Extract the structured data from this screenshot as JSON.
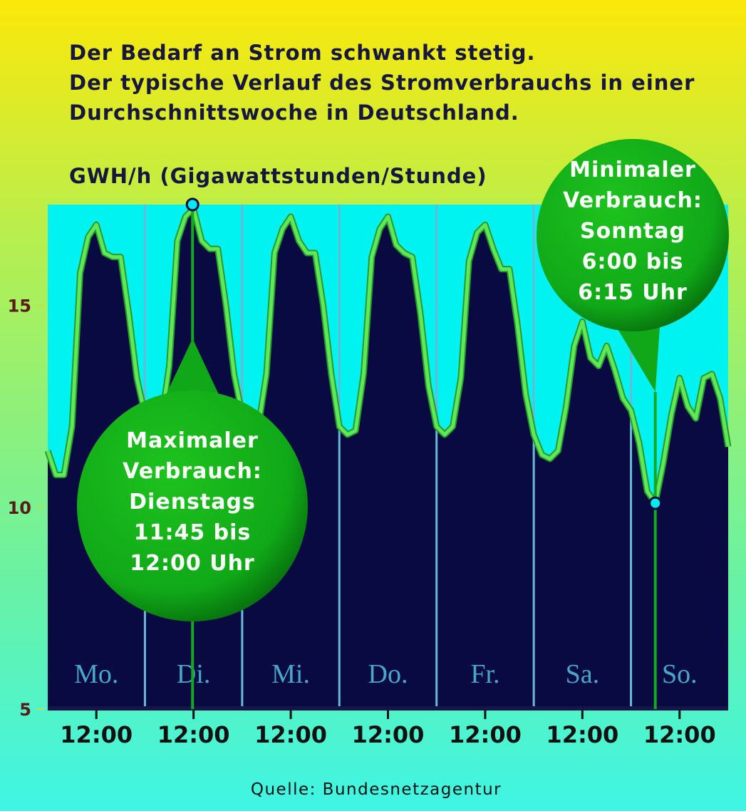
{
  "chart_data": {
    "type": "area",
    "title": [
      "Der Bedarf an Strom schwankt stetig.",
      "Der typische Verlauf des Stromverbrauchs in einer",
      "Durchschnittswoche in Deutschland."
    ],
    "y_label": "GWH/h (Gigawattstunden/Stunde)",
    "source": "Quelle: Bundesnetzagentur",
    "days": [
      "Mo.",
      "Di.",
      "Mi.",
      "Do.",
      "Fr.",
      "Sa.",
      "So."
    ],
    "x": [
      0,
      2,
      4,
      6,
      8,
      10,
      12,
      14,
      16,
      18,
      20,
      22,
      24,
      26,
      28,
      30,
      32,
      34,
      36,
      38,
      40,
      42,
      44,
      46,
      48,
      50,
      52,
      54,
      56,
      58,
      60,
      62,
      64,
      66,
      68,
      70,
      72,
      74,
      76,
      78,
      80,
      82,
      84,
      86,
      88,
      90,
      92,
      94,
      96,
      98,
      100,
      102,
      104,
      106,
      108,
      110,
      112,
      114,
      116,
      118,
      120,
      122,
      124,
      126,
      128,
      130,
      132,
      134,
      136,
      138,
      140,
      142,
      144,
      146,
      148,
      150,
      152,
      154,
      156,
      158,
      160,
      162,
      164,
      166,
      168
    ],
    "series": [
      {
        "name": "Stromverbrauch",
        "color": "#5fe85a",
        "fill": "#0a0a42",
        "values": [
          11.4,
          10.8,
          10.8,
          12.0,
          15.8,
          16.7,
          17.0,
          16.3,
          16.2,
          16.2,
          14.8,
          13.2,
          12.3,
          12.0,
          12.1,
          13.5,
          16.6,
          17.2,
          17.4,
          16.6,
          16.4,
          16.4,
          15.0,
          13.3,
          12.3,
          12.0,
          12.0,
          13.3,
          16.3,
          16.9,
          17.2,
          16.6,
          16.3,
          16.3,
          15.0,
          13.3,
          12.0,
          11.8,
          11.9,
          13.3,
          16.2,
          16.9,
          17.2,
          16.5,
          16.3,
          16.2,
          14.8,
          13.0,
          12.0,
          11.8,
          12.0,
          13.2,
          16.1,
          16.8,
          17.0,
          16.4,
          15.9,
          15.9,
          14.5,
          12.8,
          11.8,
          11.3,
          11.2,
          11.4,
          12.5,
          14.0,
          14.6,
          13.7,
          13.5,
          14.0,
          13.4,
          12.7,
          12.4,
          11.6,
          10.4,
          10.1,
          11.1,
          12.3,
          13.2,
          12.5,
          12.2,
          13.2,
          13.3,
          12.7,
          11.5
        ]
      }
    ],
    "xlim": [
      0,
      168
    ],
    "xticks": [
      {
        "value": 12,
        "label": "12:00"
      },
      {
        "value": 36,
        "label": "12:00"
      },
      {
        "value": 60,
        "label": "12:00"
      },
      {
        "value": 84,
        "label": "12:00"
      },
      {
        "value": 108,
        "label": "12:00"
      },
      {
        "value": 132,
        "label": "12:00"
      },
      {
        "value": 156,
        "label": "12:00"
      }
    ],
    "ylim": [
      5,
      17.5
    ],
    "yticks": [
      5,
      10,
      15
    ],
    "annotations": [
      {
        "lines": [
          "Maximaler",
          "Verbrauch:",
          "Dienstags",
          "11:45 bis",
          "12:00 Uhr"
        ],
        "x": 35.75,
        "y": 17.5
      },
      {
        "lines": [
          "Minimaler",
          "Verbrauch:",
          "Sonntag",
          "6:00 bis",
          "6:15 Uhr"
        ],
        "x": 150,
        "y": 10.1
      }
    ]
  }
}
